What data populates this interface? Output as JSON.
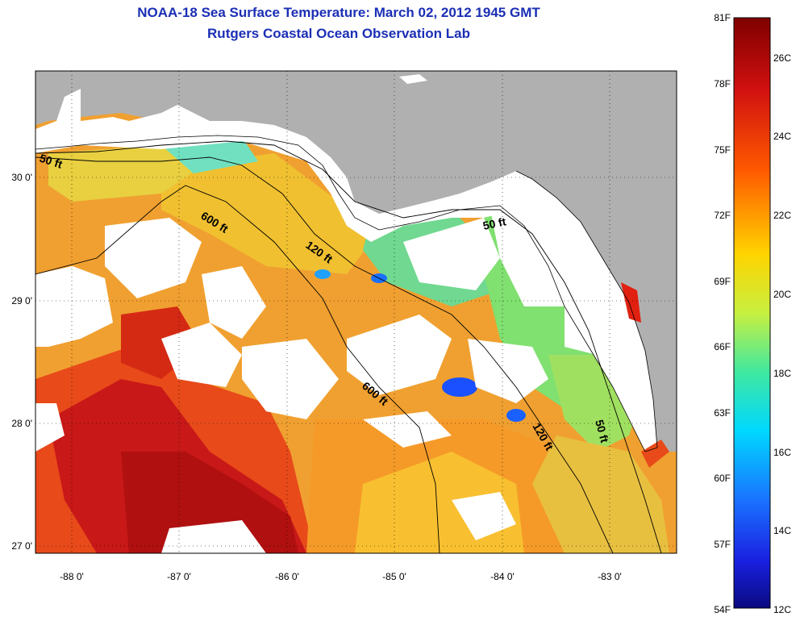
{
  "title_line1": "NOAA-18 Sea Surface Temperature:  March 02, 2012 1945 GMT",
  "title_line2": "Rutgers Coastal Ocean Observation Lab",
  "lon_ticks": [
    "-88 0'",
    "-87 0'",
    "-86 0'",
    "-85 0'",
    "-84 0'",
    "-83 0'"
  ],
  "lat_ticks": [
    "30 0'",
    "29 0'",
    "28 0'",
    "27 0'"
  ],
  "contour_labels": [
    "50 ft",
    "600 ft",
    "120 ft",
    "50 ft",
    "600 ft",
    "120 ft",
    "50 ft"
  ],
  "colorbar": {
    "fahrenheit": [
      "81F",
      "78F",
      "75F",
      "72F",
      "69F",
      "66F",
      "63F",
      "60F",
      "57F",
      "54F"
    ],
    "celsius": [
      "26C",
      "24C",
      "22C",
      "20C",
      "18C",
      "16C",
      "14C",
      "12C"
    ],
    "colors": {
      "top": "#800000",
      "red": "#e41a1a",
      "orange": "#ff8800",
      "yellow": "#ffff00",
      "green": "#88e050",
      "cyan": "#00e8ff",
      "blue": "#1a4cff",
      "bottom": "#0a0a80"
    }
  },
  "map_colors": {
    "land": "#b0b0b0",
    "cloud": "#ffffff"
  }
}
